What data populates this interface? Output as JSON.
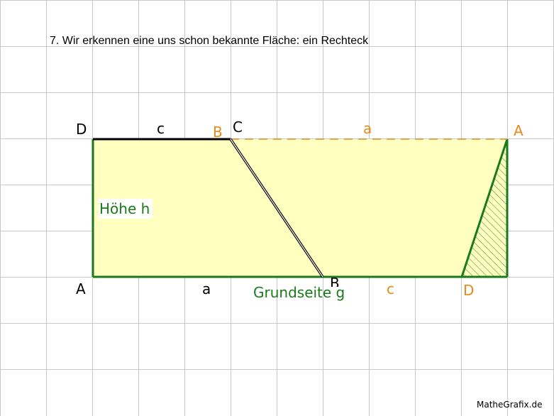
{
  "title": "7. Wir erkennen eine uns schon bekannte Fläche: ein Rechteck",
  "colors": {
    "grid": "#c8c8c8",
    "fill": "#ffffc0",
    "green": "#1a7a1a",
    "orange": "#e68a1f",
    "black": "#000000",
    "hatch": "#2e8b2e"
  },
  "labels": {
    "d_black": "D",
    "c_black": "c",
    "b_orange": "B",
    "c_vertex": "C",
    "a_orange": "a",
    "a_orange_vertex": "A",
    "hoehe": "Höhe h",
    "a_black": "A",
    "a_bottom": "a",
    "grundseite": "Grundseite g",
    "c_orange": "c",
    "d_orange": "D",
    "b_black": "B"
  },
  "brand": "MatheGrafix.de"
}
